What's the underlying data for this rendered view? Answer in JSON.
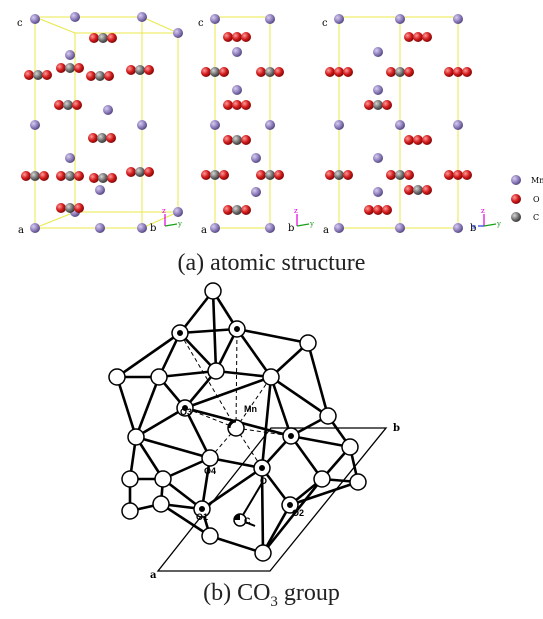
{
  "panel_a": {
    "caption": "(a) atomic structure",
    "legend": [
      "Mn",
      "O",
      "C"
    ],
    "axis_labels": {
      "c": "c",
      "a": "a",
      "b": "b",
      "z": "z",
      "y": "y",
      "x": "x"
    }
  },
  "panel_b": {
    "caption_main": "(b) CO",
    "caption_sub": "3",
    "caption_tail": " group",
    "labels": {
      "mn": "Mn",
      "o3": "O3",
      "o4": "O4",
      "o": "O",
      "o1": "O1",
      "o2": "O2",
      "c": "C",
      "a": "a",
      "b": "b"
    }
  },
  "colors": {
    "mn": "#8a79b8",
    "o": "#d21b1b",
    "c": "#6b6b6b",
    "cell": "#e8e84a",
    "axis_z": "#e000e0",
    "axis_y": "#1aa01a",
    "axis_x": "#2040e0"
  }
}
